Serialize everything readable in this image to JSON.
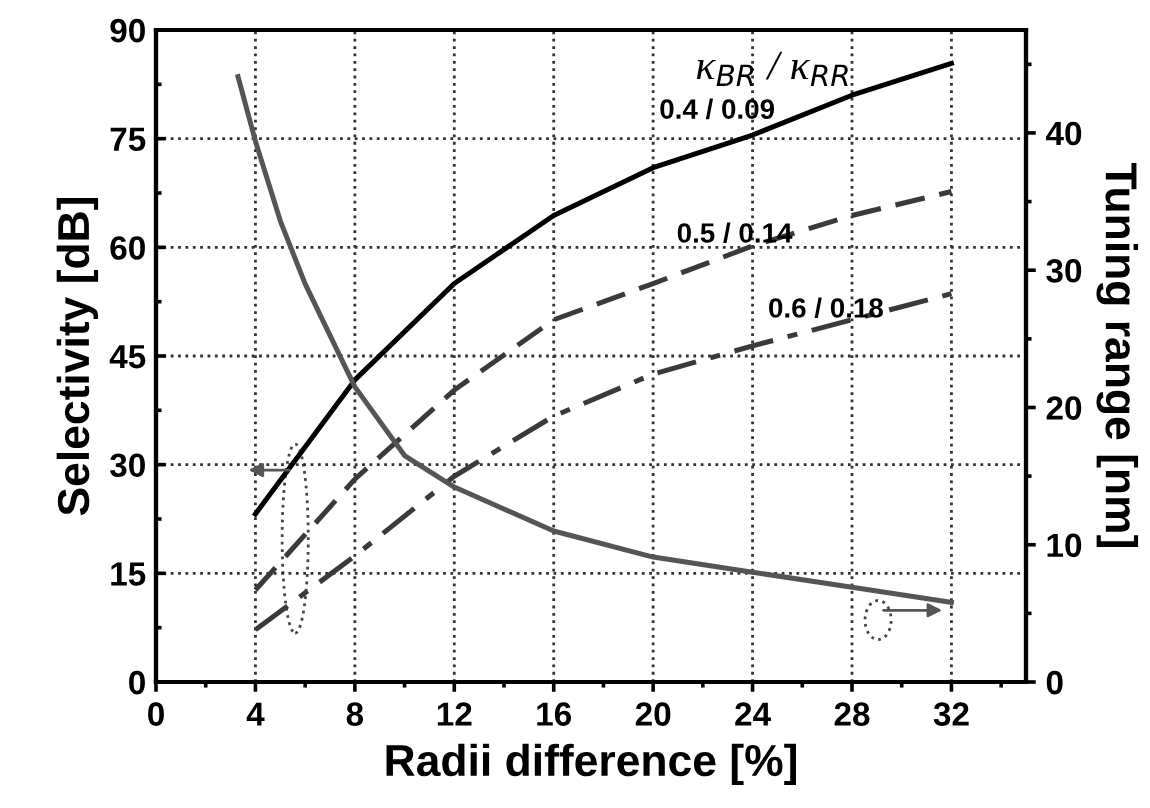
{
  "chart_data": {
    "type": "line",
    "xlabel": "Radii difference [%]",
    "ylabel": "Selectivity [dB]",
    "y2label": "Tuning range [nm]",
    "x": [
      4,
      8,
      12,
      16,
      20,
      24,
      28,
      32
    ],
    "series": [
      {
        "color": "#000000",
        "line_style": "solid",
        "values": [
          23.2,
          41.7,
          55,
          64.4,
          71,
          75.5,
          81,
          85.4
        ]
      },
      {
        "color": "#3a3a3a",
        "line_style": "dashed",
        "values": [
          12.7,
          28,
          40.3,
          50,
          55,
          60.2,
          64.4,
          67.7
        ]
      },
      {
        "color": "#3a3a3a",
        "line_style": "dashdot",
        "values": [
          7.2,
          17.4,
          28.4,
          36.7,
          42.5,
          46.4,
          50,
          53.6
        ]
      },
      {
        "color": "#555555",
        "line_style": "solid",
        "axis": "y2",
        "x": [
          3.3,
          4,
          5,
          6,
          8,
          10,
          12,
          16,
          20,
          24,
          28,
          32
        ],
        "values": [
          44.1,
          39.4,
          33.6,
          29,
          21.5,
          16.5,
          14.2,
          11,
          9.1,
          8,
          6.9,
          5.8
        ]
      }
    ],
    "annotations": [
      "κ$_{BR}$ / κ$_{RR}$",
      "0.4 / 0.09",
      "0.5 / 0.14",
      "0.6 / 0.18"
    ],
    "xlim": [
      0,
      35
    ],
    "xticks": [
      0,
      4,
      8,
      12,
      16,
      20,
      24,
      28,
      32
    ],
    "ylim": [
      0,
      90
    ],
    "yticks": [
      0,
      15,
      30,
      45,
      60,
      75,
      90
    ],
    "y2lim": [
      0,
      47.5
    ],
    "y2ticks": [
      0,
      10,
      20,
      30,
      40
    ],
    "grid": true,
    "legend": false,
    "marker": "none"
  }
}
